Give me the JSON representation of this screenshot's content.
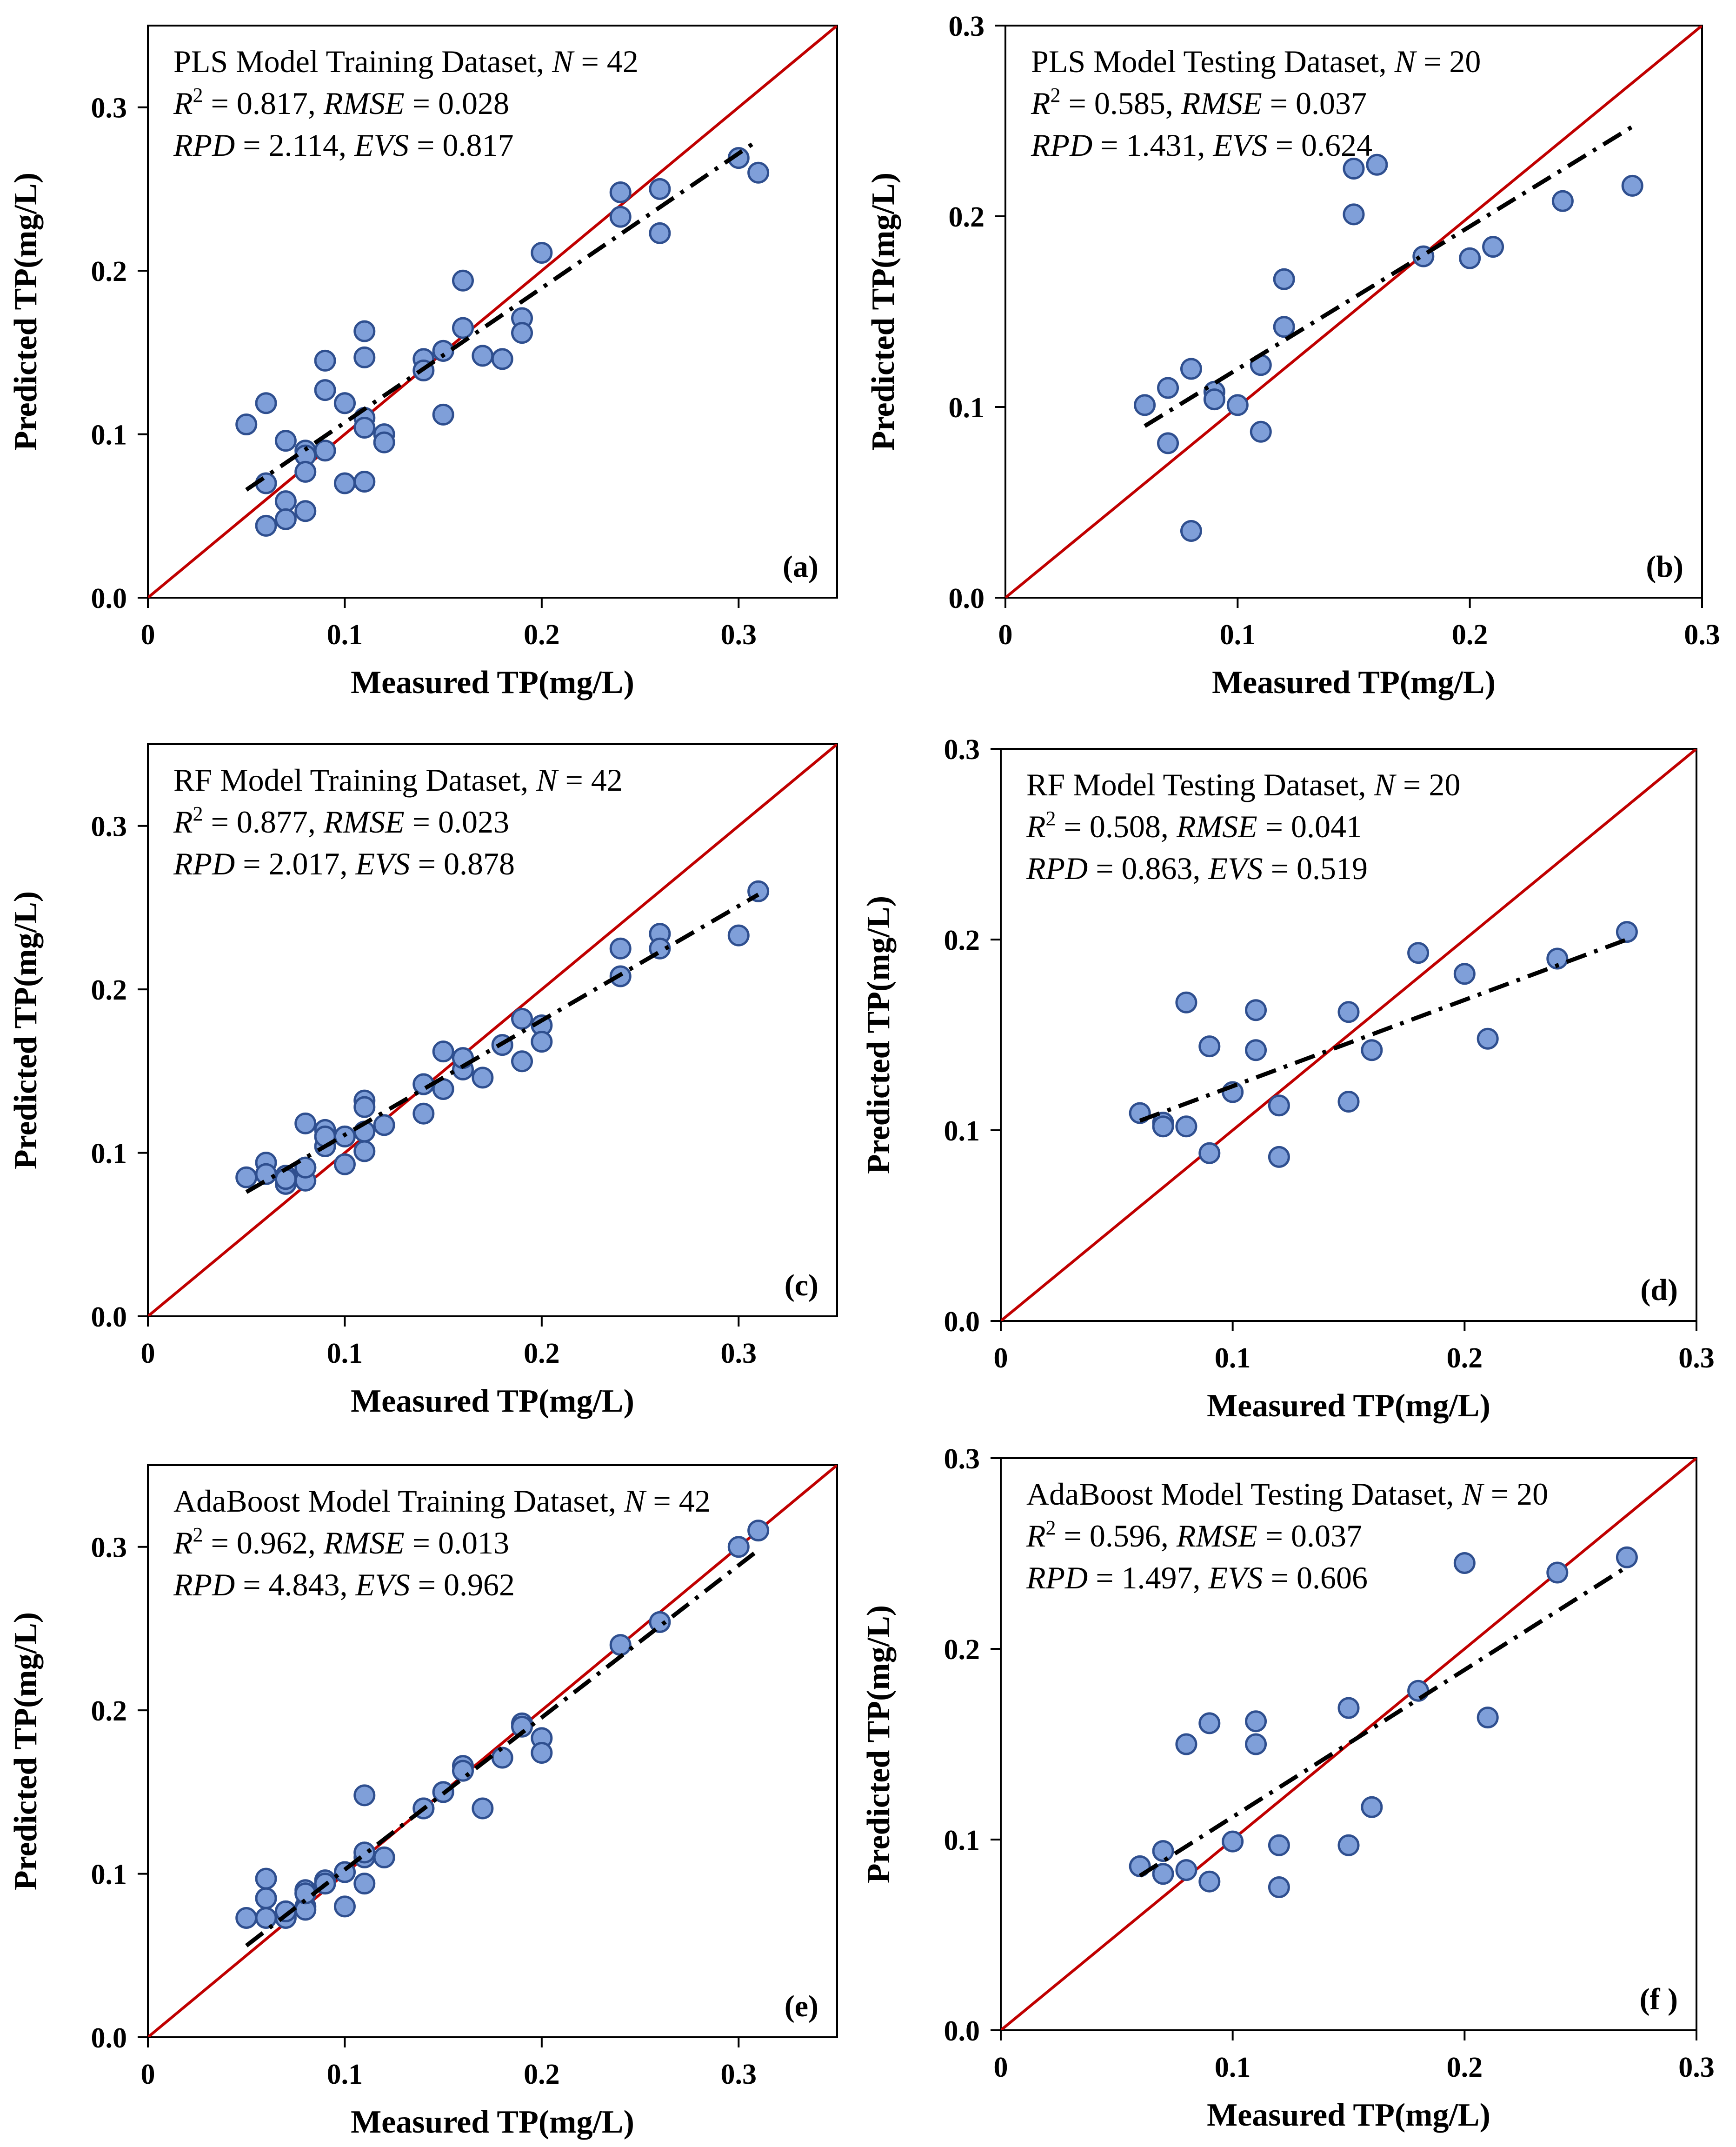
{
  "chart_data": [
    {
      "id": "a",
      "type": "scatter",
      "title_line": "PLS Model Training Dataset, ",
      "n_label": "N",
      "n_value": "42",
      "r2": "0.817",
      "rmse": "0.028",
      "rpd": "2.114",
      "evs": "0.817",
      "xlabel": "Measured TP(mg/L)",
      "ylabel": "Predicted TP(mg/L)",
      "xlim": [
        0,
        0.35
      ],
      "ylim": [
        0,
        0.35
      ],
      "xticks": [
        0,
        0.1,
        0.2,
        0.3
      ],
      "xtick_labels": [
        "0",
        "0.1",
        "0.2",
        "0.3"
      ],
      "yticks": [
        0,
        0.1,
        0.2,
        0.3
      ],
      "ytick_labels": [
        "0.0",
        "0.1",
        "0.2",
        "0.3"
      ],
      "fit_line": [
        [
          0.05,
          0.066
        ],
        [
          0.31,
          0.28
        ]
      ],
      "panel_label": "(a)",
      "points": [
        [
          0.05,
          0.106
        ],
        [
          0.06,
          0.119
        ],
        [
          0.06,
          0.07
        ],
        [
          0.06,
          0.044
        ],
        [
          0.07,
          0.096
        ],
        [
          0.07,
          0.059
        ],
        [
          0.07,
          0.048
        ],
        [
          0.08,
          0.09
        ],
        [
          0.08,
          0.087
        ],
        [
          0.08,
          0.077
        ],
        [
          0.08,
          0.053
        ],
        [
          0.09,
          0.145
        ],
        [
          0.09,
          0.127
        ],
        [
          0.09,
          0.09
        ],
        [
          0.1,
          0.119
        ],
        [
          0.1,
          0.07
        ],
        [
          0.11,
          0.163
        ],
        [
          0.11,
          0.147
        ],
        [
          0.11,
          0.11
        ],
        [
          0.11,
          0.104
        ],
        [
          0.11,
          0.071
        ],
        [
          0.12,
          0.1
        ],
        [
          0.12,
          0.095
        ],
        [
          0.14,
          0.146
        ],
        [
          0.14,
          0.139
        ],
        [
          0.15,
          0.151
        ],
        [
          0.15,
          0.112
        ],
        [
          0.16,
          0.194
        ],
        [
          0.16,
          0.165
        ],
        [
          0.17,
          0.148
        ],
        [
          0.18,
          0.146
        ],
        [
          0.19,
          0.171
        ],
        [
          0.19,
          0.162
        ],
        [
          0.2,
          0.211
        ],
        [
          0.24,
          0.248
        ],
        [
          0.24,
          0.233
        ],
        [
          0.26,
          0.25
        ],
        [
          0.26,
          0.223
        ],
        [
          0.3,
          0.269
        ],
        [
          0.31,
          0.26
        ],
        [
          0.15,
          0.151
        ],
        [
          0.1,
          0.119
        ]
      ]
    },
    {
      "id": "b",
      "type": "scatter",
      "title_line": "PLS Model Testing Dataset, ",
      "n_label": "N",
      "n_value": "20",
      "r2": "0.585",
      "rmse": "0.037",
      "rpd": "1.431",
      "evs": "0.624",
      "xlabel": "Measured TP(mg/L)",
      "ylabel": "Predicted TP(mg/L)",
      "xlim": [
        0,
        0.3
      ],
      "ylim": [
        0,
        0.3
      ],
      "xticks": [
        0,
        0.1,
        0.2,
        0.3
      ],
      "xtick_labels": [
        "0",
        "0.1",
        "0.2",
        "0.3"
      ],
      "yticks": [
        0,
        0.1,
        0.2,
        0.3
      ],
      "ytick_labels": [
        "0.0",
        "0.1",
        "0.2",
        "0.3"
      ],
      "fit_line": [
        [
          0.06,
          0.09
        ],
        [
          0.27,
          0.247
        ]
      ],
      "panel_label": "(b)",
      "points": [
        [
          0.06,
          0.101
        ],
        [
          0.07,
          0.11
        ],
        [
          0.07,
          0.081
        ],
        [
          0.08,
          0.12
        ],
        [
          0.08,
          0.035
        ],
        [
          0.09,
          0.108
        ],
        [
          0.09,
          0.104
        ],
        [
          0.1,
          0.101
        ],
        [
          0.11,
          0.122
        ],
        [
          0.11,
          0.087
        ],
        [
          0.12,
          0.167
        ],
        [
          0.12,
          0.142
        ],
        [
          0.15,
          0.225
        ],
        [
          0.15,
          0.201
        ],
        [
          0.16,
          0.227
        ],
        [
          0.18,
          0.179
        ],
        [
          0.2,
          0.178
        ],
        [
          0.21,
          0.184
        ],
        [
          0.24,
          0.208
        ],
        [
          0.27,
          0.216
        ]
      ]
    },
    {
      "id": "c",
      "type": "scatter",
      "title_line": "RF Model Training Dataset, ",
      "n_label": "N",
      "n_value": "42",
      "r2": "0.877",
      "rmse": "0.023",
      "rpd": "2.017",
      "evs": "0.878",
      "xlabel": "Measured TP(mg/L)",
      "ylabel": "Predicted TP(mg/L)",
      "xlim": [
        0,
        0.35
      ],
      "ylim": [
        0,
        0.35
      ],
      "xticks": [
        0,
        0.1,
        0.2,
        0.3
      ],
      "xtick_labels": [
        "0",
        "0.1",
        "0.2",
        "0.3"
      ],
      "yticks": [
        0,
        0.1,
        0.2,
        0.3
      ],
      "ytick_labels": [
        "0.0",
        "0.1",
        "0.2",
        "0.3"
      ],
      "fit_line": [
        [
          0.05,
          0.076
        ],
        [
          0.31,
          0.258
        ]
      ],
      "panel_label": "(c)",
      "points": [
        [
          0.05,
          0.085
        ],
        [
          0.06,
          0.094
        ],
        [
          0.06,
          0.087
        ],
        [
          0.07,
          0.086
        ],
        [
          0.07,
          0.081
        ],
        [
          0.08,
          0.118
        ],
        [
          0.08,
          0.091
        ],
        [
          0.08,
          0.083
        ],
        [
          0.09,
          0.114
        ],
        [
          0.09,
          0.11
        ],
        [
          0.09,
          0.104
        ],
        [
          0.1,
          0.11
        ],
        [
          0.1,
          0.093
        ],
        [
          0.11,
          0.132
        ],
        [
          0.11,
          0.128
        ],
        [
          0.11,
          0.113
        ],
        [
          0.11,
          0.101
        ],
        [
          0.12,
          0.117
        ],
        [
          0.14,
          0.142
        ],
        [
          0.14,
          0.124
        ],
        [
          0.15,
          0.162
        ],
        [
          0.15,
          0.139
        ],
        [
          0.16,
          0.158
        ],
        [
          0.16,
          0.151
        ],
        [
          0.17,
          0.146
        ],
        [
          0.18,
          0.166
        ],
        [
          0.19,
          0.182
        ],
        [
          0.19,
          0.156
        ],
        [
          0.2,
          0.178
        ],
        [
          0.2,
          0.168
        ],
        [
          0.24,
          0.225
        ],
        [
          0.24,
          0.208
        ],
        [
          0.26,
          0.234
        ],
        [
          0.26,
          0.225
        ],
        [
          0.3,
          0.233
        ],
        [
          0.31,
          0.26
        ],
        [
          0.07,
          0.084
        ],
        [
          0.1,
          0.11
        ],
        [
          0.16,
          0.158
        ],
        [
          0.14,
          0.142
        ],
        [
          0.09,
          0.11
        ],
        [
          0.08,
          0.091
        ]
      ]
    },
    {
      "id": "d",
      "type": "scatter",
      "title_line": "RF Model Testing Dataset, ",
      "n_label": "N",
      "n_value": "20",
      "r2": "0.508",
      "rmse": "0.041",
      "rpd": "0.863",
      "evs": "0.519",
      "xlabel": "Measured TP(mg/L)",
      "ylabel": "Predicted TP(mg/L)",
      "xlim": [
        0,
        0.3
      ],
      "ylim": [
        0,
        0.3
      ],
      "xticks": [
        0,
        0.1,
        0.2,
        0.3
      ],
      "xtick_labels": [
        "0",
        "0.1",
        "0.2",
        "0.3"
      ],
      "yticks": [
        0,
        0.1,
        0.2,
        0.3
      ],
      "ytick_labels": [
        "0.0",
        "0.1",
        "0.2",
        "0.3"
      ],
      "fit_line": [
        [
          0.06,
          0.105
        ],
        [
          0.27,
          0.2
        ]
      ],
      "panel_label": "(d)",
      "points": [
        [
          0.06,
          0.109
        ],
        [
          0.07,
          0.104
        ],
        [
          0.07,
          0.102
        ],
        [
          0.08,
          0.167
        ],
        [
          0.08,
          0.102
        ],
        [
          0.09,
          0.144
        ],
        [
          0.09,
          0.088
        ],
        [
          0.1,
          0.12
        ],
        [
          0.11,
          0.163
        ],
        [
          0.11,
          0.142
        ],
        [
          0.12,
          0.113
        ],
        [
          0.12,
          0.086
        ],
        [
          0.15,
          0.162
        ],
        [
          0.15,
          0.115
        ],
        [
          0.16,
          0.142
        ],
        [
          0.18,
          0.193
        ],
        [
          0.2,
          0.182
        ],
        [
          0.21,
          0.148
        ],
        [
          0.24,
          0.19
        ],
        [
          0.27,
          0.204
        ]
      ]
    },
    {
      "id": "e",
      "type": "scatter",
      "title_line": "AdaBoost Model Training Dataset, ",
      "n_label": "N",
      "n_value": "42",
      "r2": "0.962",
      "rmse": "0.013",
      "rpd": "4.843",
      "evs": "0.962",
      "xlabel": "Measured TP(mg/L)",
      "ylabel": "Predicted TP(mg/L)",
      "xlim": [
        0,
        0.35
      ],
      "ylim": [
        0,
        0.35
      ],
      "xticks": [
        0,
        0.1,
        0.2,
        0.3
      ],
      "xtick_labels": [
        "0",
        "0.1",
        "0.2",
        "0.3"
      ],
      "yticks": [
        0,
        0.1,
        0.2,
        0.3
      ],
      "ytick_labels": [
        "0.0",
        "0.1",
        "0.2",
        "0.3"
      ],
      "fit_line": [
        [
          0.05,
          0.056
        ],
        [
          0.31,
          0.298
        ]
      ],
      "panel_label": "(e)",
      "points": [
        [
          0.05,
          0.073
        ],
        [
          0.06,
          0.097
        ],
        [
          0.06,
          0.085
        ],
        [
          0.06,
          0.073
        ],
        [
          0.07,
          0.077
        ],
        [
          0.07,
          0.073
        ],
        [
          0.08,
          0.09
        ],
        [
          0.08,
          0.088
        ],
        [
          0.08,
          0.08
        ],
        [
          0.08,
          0.078
        ],
        [
          0.09,
          0.096
        ],
        [
          0.09,
          0.094
        ],
        [
          0.1,
          0.101
        ],
        [
          0.1,
          0.08
        ],
        [
          0.11,
          0.148
        ],
        [
          0.11,
          0.113
        ],
        [
          0.11,
          0.11
        ],
        [
          0.11,
          0.094
        ],
        [
          0.12,
          0.11
        ],
        [
          0.14,
          0.14
        ],
        [
          0.15,
          0.15
        ],
        [
          0.16,
          0.166
        ],
        [
          0.16,
          0.163
        ],
        [
          0.17,
          0.14
        ],
        [
          0.18,
          0.171
        ],
        [
          0.19,
          0.192
        ],
        [
          0.19,
          0.19
        ],
        [
          0.2,
          0.183
        ],
        [
          0.2,
          0.174
        ],
        [
          0.24,
          0.24
        ],
        [
          0.26,
          0.254
        ],
        [
          0.3,
          0.3
        ],
        [
          0.31,
          0.31
        ],
        [
          0.09,
          0.094
        ],
        [
          0.07,
          0.077
        ],
        [
          0.1,
          0.101
        ],
        [
          0.11,
          0.113
        ],
        [
          0.15,
          0.15
        ],
        [
          0.14,
          0.14
        ],
        [
          0.08,
          0.088
        ],
        [
          0.06,
          0.085
        ],
        [
          0.12,
          0.11
        ]
      ]
    },
    {
      "id": "f",
      "type": "scatter",
      "title_line": "AdaBoost Model Testing Dataset, ",
      "n_label": "N",
      "n_value": "20",
      "r2": "0.596",
      "rmse": "0.037",
      "rpd": "1.497",
      "evs": "0.606",
      "xlabel": "Measured TP(mg/L)",
      "ylabel": "Predicted TP(mg/L)",
      "xlim": [
        0,
        0.3
      ],
      "ylim": [
        0,
        0.3
      ],
      "xticks": [
        0,
        0.1,
        0.2,
        0.3
      ],
      "xtick_labels": [
        "0",
        "0.1",
        "0.2",
        "0.3"
      ],
      "yticks": [
        0,
        0.1,
        0.2,
        0.3
      ],
      "ytick_labels": [
        "0.0",
        "0.1",
        "0.2",
        "0.3"
      ],
      "fit_line": [
        [
          0.06,
          0.081
        ],
        [
          0.27,
          0.243
        ]
      ],
      "panel_label": "(f )",
      "points": [
        [
          0.06,
          0.086
        ],
        [
          0.07,
          0.094
        ],
        [
          0.07,
          0.082
        ],
        [
          0.08,
          0.15
        ],
        [
          0.08,
          0.084
        ],
        [
          0.09,
          0.161
        ],
        [
          0.09,
          0.078
        ],
        [
          0.1,
          0.099
        ],
        [
          0.11,
          0.162
        ],
        [
          0.11,
          0.15
        ],
        [
          0.12,
          0.097
        ],
        [
          0.12,
          0.075
        ],
        [
          0.15,
          0.169
        ],
        [
          0.15,
          0.097
        ],
        [
          0.16,
          0.117
        ],
        [
          0.18,
          0.178
        ],
        [
          0.2,
          0.245
        ],
        [
          0.21,
          0.164
        ],
        [
          0.24,
          0.24
        ],
        [
          0.27,
          0.248
        ]
      ]
    }
  ]
}
